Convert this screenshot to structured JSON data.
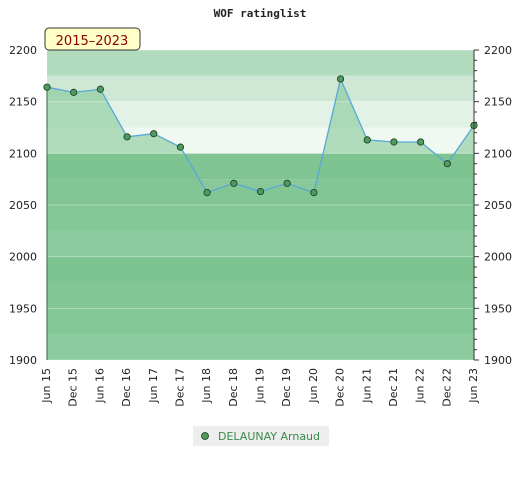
{
  "chart_data": {
    "type": "line",
    "title": "WOF ratinglist",
    "period_badge": "2015–2023",
    "ylim": [
      1900,
      2200
    ],
    "y_ticks": [
      1900,
      1950,
      2000,
      2050,
      2100,
      2150,
      2200
    ],
    "x_labels": [
      "Jun 15",
      "Dec 15",
      "Jun 16",
      "Dec 16",
      "Jun 17",
      "Dec 17",
      "Jun 18",
      "Dec 18",
      "Jun 19",
      "Dec 19",
      "Jun 20",
      "Dec 20",
      "Jun 21",
      "Dec 21",
      "Jun 22",
      "Dec 22",
      "Jun 23"
    ],
    "series": [
      {
        "name": "DELAUNAY Arnaud",
        "values": [
          2164,
          2159,
          2162,
          2116,
          2119,
          2106,
          2062,
          2071,
          2063,
          2071,
          2062,
          2172,
          2113,
          2111,
          2111,
          2090,
          2127
        ]
      }
    ],
    "grid": true,
    "legend_position": "bottom-center",
    "colors": {
      "line": "#5aa7d8",
      "marker": "#4f9a5f",
      "fill": "#7cc48f",
      "band_dark": "#7fc492",
      "band_mid": "#9fd3ad",
      "band_light": "#e8f5eb",
      "badge_bg": "#ffffc8"
    }
  }
}
